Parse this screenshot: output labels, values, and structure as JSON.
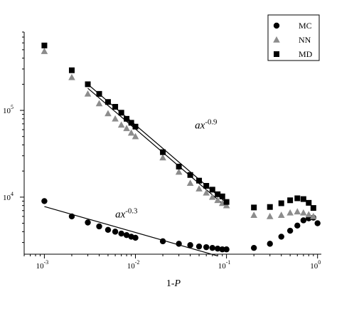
{
  "chart_data": {
    "type": "scatter",
    "xlabel": "1-P",
    "ylabel": "",
    "xscale": "log",
    "yscale": "log",
    "xlim": [
      0.0006,
      1.1
    ],
    "ylim": [
      2200,
      800000
    ],
    "x_ticks": [
      {
        "value": 0.001,
        "base": "10",
        "exp": "-3"
      },
      {
        "value": 0.01,
        "base": "10",
        "exp": "-2"
      },
      {
        "value": 0.1,
        "base": "10",
        "exp": "-1"
      },
      {
        "value": 1,
        "base": "10",
        "exp": "0"
      }
    ],
    "y_ticks": [
      {
        "value": 10000,
        "base": "10",
        "exp": "4"
      },
      {
        "value": 100000,
        "base": "10",
        "exp": "5"
      }
    ],
    "legend_position": "top-right",
    "series": [
      {
        "name": "MC",
        "marker": "circle",
        "color": "#000000",
        "x": [
          0.001,
          0.002,
          0.003,
          0.004,
          0.005,
          0.006,
          0.007,
          0.008,
          0.009,
          0.01,
          0.02,
          0.03,
          0.04,
          0.05,
          0.06,
          0.07,
          0.08,
          0.09,
          0.1,
          0.2,
          0.3,
          0.4,
          0.5,
          0.6,
          0.7,
          0.8,
          0.9,
          1.0
        ],
        "y": [
          9000,
          6000,
          5100,
          4600,
          4200,
          4000,
          3800,
          3650,
          3500,
          3400,
          3100,
          2900,
          2800,
          2700,
          2650,
          2600,
          2550,
          2500,
          2500,
          2600,
          2900,
          3500,
          4100,
          4700,
          5400,
          5700,
          5800,
          5000
        ]
      },
      {
        "name": "NN",
        "marker": "triangle",
        "color": "#8c8c8c",
        "x": [
          0.001,
          0.002,
          0.003,
          0.004,
          0.005,
          0.006,
          0.007,
          0.008,
          0.009,
          0.01,
          0.02,
          0.03,
          0.04,
          0.05,
          0.06,
          0.07,
          0.08,
          0.09,
          0.1,
          0.2,
          0.3,
          0.4,
          0.5,
          0.6,
          0.7,
          0.8,
          0.9
        ],
        "y": [
          480000,
          240000,
          155000,
          120000,
          92000,
          80000,
          68000,
          62000,
          55000,
          50000,
          28500,
          19500,
          14500,
          12500,
          11200,
          10000,
          9200,
          8500,
          8000,
          6200,
          6000,
          6200,
          6600,
          6800,
          6600,
          6300,
          6000
        ]
      },
      {
        "name": "MD",
        "marker": "square",
        "color": "#000000",
        "x": [
          0.001,
          0.002,
          0.003,
          0.004,
          0.005,
          0.006,
          0.007,
          0.008,
          0.009,
          0.01,
          0.02,
          0.03,
          0.04,
          0.05,
          0.06,
          0.07,
          0.08,
          0.09,
          0.1,
          0.2,
          0.3,
          0.4,
          0.5,
          0.6,
          0.7,
          0.8,
          0.9
        ],
        "y": [
          560000,
          290000,
          200000,
          155000,
          125000,
          110000,
          94000,
          80000,
          72000,
          65000,
          33000,
          22500,
          18000,
          15500,
          13500,
          12200,
          10800,
          10200,
          8800,
          7600,
          7700,
          8500,
          9200,
          9700,
          9500,
          8600,
          7500
        ]
      }
    ],
    "fit_lines": [
      {
        "x": [
          0.003,
          0.1
        ],
        "y": [
          180000,
          7700
        ]
      },
      {
        "x": [
          0.003,
          0.1
        ],
        "y": [
          200000,
          8600
        ]
      },
      {
        "x": [
          0.001,
          0.08
        ],
        "y": [
          7800,
          2100
        ]
      }
    ],
    "annotations": [
      {
        "base": "ax",
        "exp": "-0.9",
        "x": 0.045,
        "y": 62000
      },
      {
        "base": "ax",
        "exp": "-0.3",
        "x": 0.006,
        "y": 5800
      }
    ]
  }
}
